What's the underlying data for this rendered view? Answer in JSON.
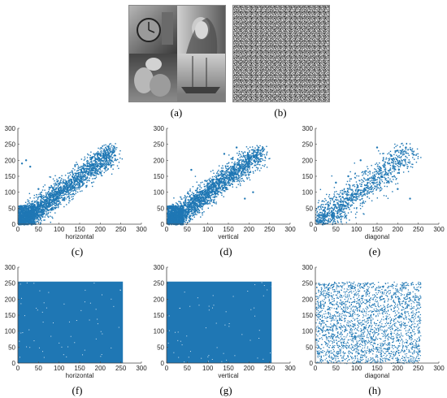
{
  "panels": {
    "a": {
      "caption": "(a)",
      "description_icon": "image-collage"
    },
    "b": {
      "caption": "(b)",
      "description_icon": "noise-image"
    }
  },
  "chart_data": [
    {
      "id": "c",
      "caption": "(c)",
      "type": "scatter",
      "xlabel": "horizontal",
      "xlim": [
        0,
        300
      ],
      "ylim": [
        0,
        300
      ],
      "xticks": [
        0,
        50,
        100,
        150,
        200,
        250,
        300
      ],
      "yticks": [
        0,
        50,
        100,
        150,
        200,
        250,
        300
      ],
      "distribution": "correlated",
      "color": "#1f77b4",
      "points": [
        [
          5,
          10
        ],
        [
          15,
          20
        ],
        [
          25,
          35
        ],
        [
          40,
          45
        ],
        [
          55,
          60
        ],
        [
          70,
          75
        ],
        [
          85,
          90
        ],
        [
          100,
          100
        ],
        [
          120,
          115
        ],
        [
          140,
          135
        ],
        [
          160,
          150
        ],
        [
          180,
          170
        ],
        [
          200,
          190
        ],
        [
          215,
          205
        ],
        [
          230,
          225
        ],
        [
          20,
          200
        ],
        [
          10,
          190
        ],
        [
          30,
          180
        ],
        [
          50,
          110
        ],
        [
          90,
          50
        ]
      ]
    },
    {
      "id": "d",
      "caption": "(d)",
      "type": "scatter",
      "xlabel": "vertical",
      "xlim": [
        0,
        300
      ],
      "ylim": [
        0,
        300
      ],
      "xticks": [
        0,
        50,
        100,
        150,
        200,
        250,
        300
      ],
      "yticks": [
        0,
        50,
        100,
        150,
        200,
        250,
        300
      ],
      "distribution": "correlated",
      "color": "#1f77b4",
      "points": [
        [
          5,
          10
        ],
        [
          20,
          25
        ],
        [
          40,
          45
        ],
        [
          60,
          65
        ],
        [
          80,
          85
        ],
        [
          100,
          100
        ],
        [
          120,
          120
        ],
        [
          140,
          140
        ],
        [
          160,
          160
        ],
        [
          180,
          180
        ],
        [
          200,
          195
        ],
        [
          220,
          215
        ],
        [
          235,
          230
        ],
        [
          170,
          240
        ],
        [
          140,
          220
        ],
        [
          210,
          100
        ],
        [
          190,
          80
        ],
        [
          60,
          170
        ]
      ]
    },
    {
      "id": "e",
      "caption": "(e)",
      "type": "scatter",
      "xlabel": "diagonal",
      "xlim": [
        0,
        300
      ],
      "ylim": [
        0,
        300
      ],
      "xticks": [
        0,
        50,
        100,
        150,
        200,
        250,
        300
      ],
      "yticks": [
        0,
        50,
        100,
        150,
        200,
        250,
        300
      ],
      "distribution": "correlated-sparse",
      "color": "#1f77b4",
      "points": [
        [
          5,
          10
        ],
        [
          20,
          25
        ],
        [
          40,
          40
        ],
        [
          60,
          60
        ],
        [
          80,
          75
        ],
        [
          100,
          95
        ],
        [
          120,
          110
        ],
        [
          140,
          130
        ],
        [
          160,
          150
        ],
        [
          180,
          190
        ],
        [
          200,
          230
        ],
        [
          220,
          240
        ],
        [
          150,
          240
        ],
        [
          110,
          200
        ],
        [
          200,
          110
        ],
        [
          230,
          80
        ],
        [
          80,
          150
        ],
        [
          50,
          130
        ]
      ]
    },
    {
      "id": "f",
      "caption": "(f)",
      "type": "scatter",
      "xlabel": "horizontal",
      "xlim": [
        0,
        300
      ],
      "ylim": [
        0,
        300
      ],
      "xticks": [
        0,
        50,
        100,
        150,
        200,
        250,
        300
      ],
      "yticks": [
        0,
        50,
        100,
        150,
        200,
        250,
        300
      ],
      "distribution": "uniform-dense",
      "range": [
        0,
        255
      ],
      "color": "#1f77b4"
    },
    {
      "id": "g",
      "caption": "(g)",
      "type": "scatter",
      "xlabel": "vertical",
      "xlim": [
        0,
        300
      ],
      "ylim": [
        0,
        300
      ],
      "xticks": [
        0,
        50,
        100,
        150,
        200,
        250,
        300
      ],
      "yticks": [
        0,
        50,
        100,
        150,
        200,
        250,
        300
      ],
      "distribution": "uniform-dense",
      "range": [
        0,
        255
      ],
      "color": "#1f77b4"
    },
    {
      "id": "h",
      "caption": "(h)",
      "type": "scatter",
      "xlabel": "diagonal",
      "xlim": [
        0,
        300
      ],
      "ylim": [
        0,
        300
      ],
      "xticks": [
        0,
        50,
        100,
        150,
        200,
        250,
        300
      ],
      "yticks": [
        0,
        50,
        100,
        150,
        200,
        250,
        300
      ],
      "distribution": "uniform-sparse",
      "range": [
        0,
        255
      ],
      "color": "#1f77b4"
    }
  ]
}
